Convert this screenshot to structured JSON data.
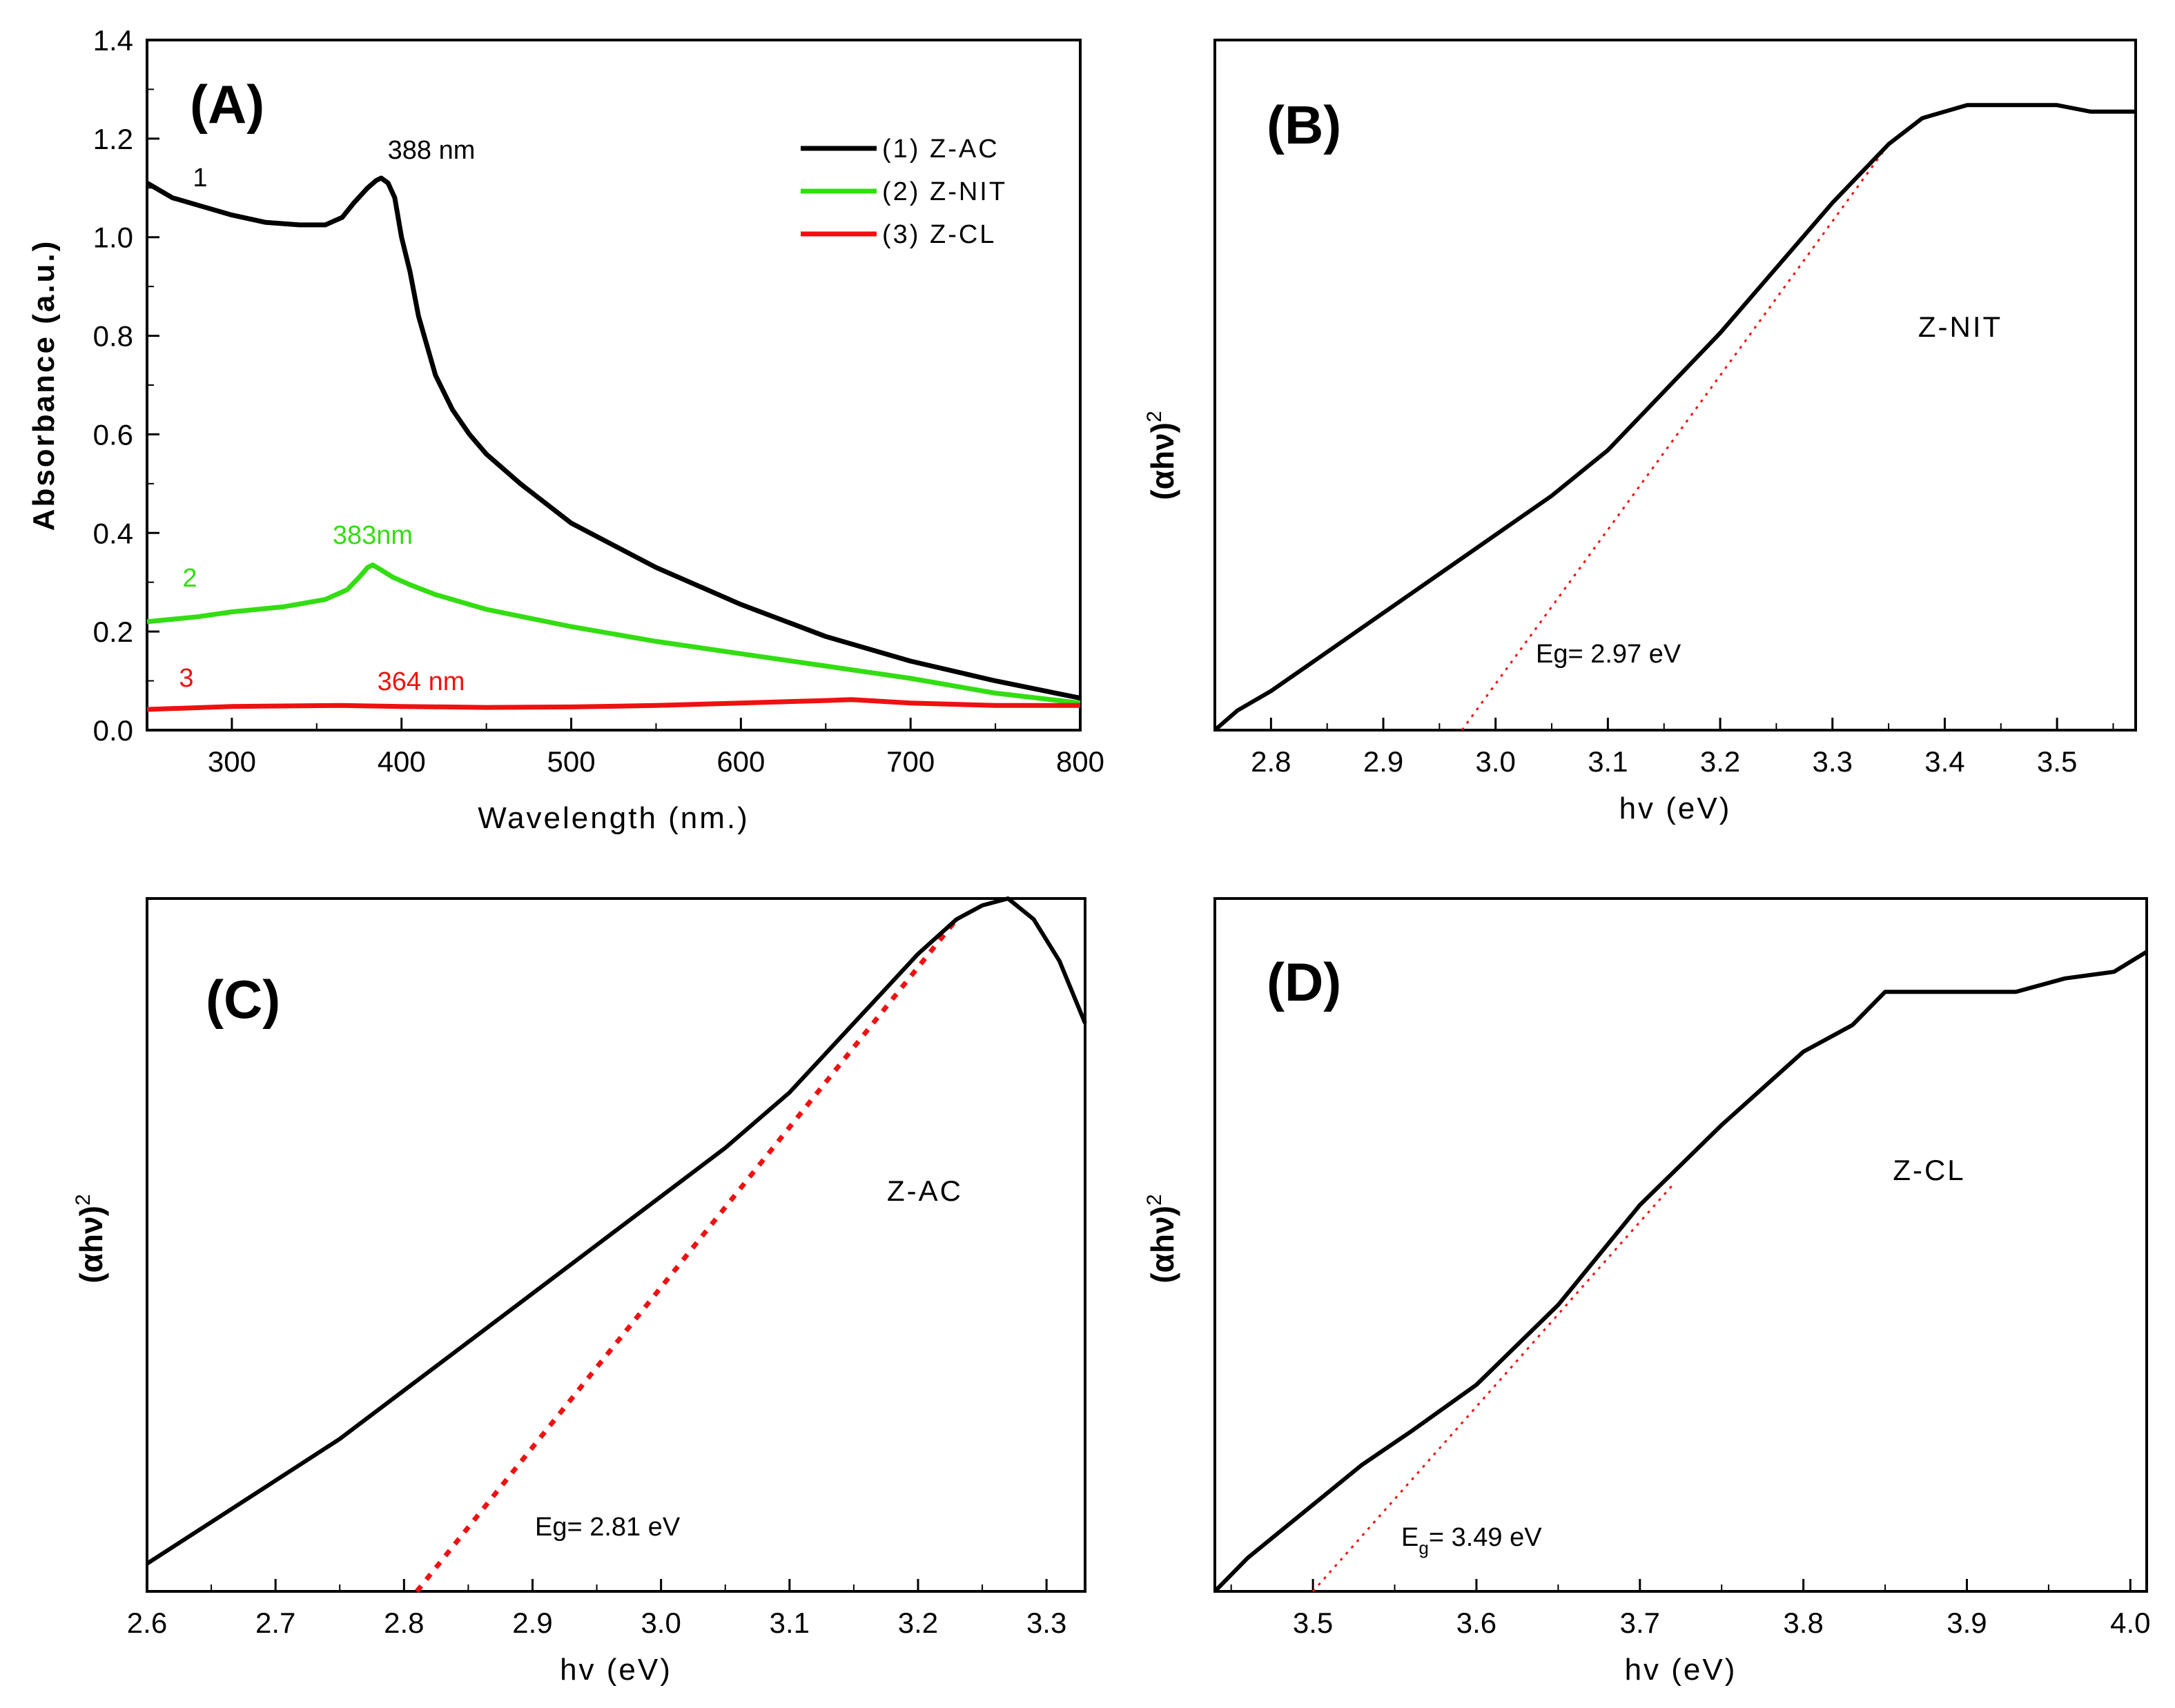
{
  "chart_data": [
    {
      "panel": "A",
      "type": "line",
      "label": "(A)",
      "xlabel": "Wavelength (nm.)",
      "ylabel": "Absorbance (a.u.)",
      "xlim": [
        250,
        800
      ],
      "ylim": [
        0.0,
        1.4
      ],
      "xticks": [
        "300",
        "400",
        "500",
        "600",
        "700",
        "800"
      ],
      "yticks": [
        "0.0",
        "0.2",
        "0.4",
        "0.6",
        "0.8",
        "1.0",
        "1.2",
        "1.4"
      ],
      "legend_position": "top-right",
      "series": [
        {
          "name": "(1) Z-AC",
          "number": "1",
          "color": "#000000",
          "x": [
            250,
            255,
            265,
            280,
            300,
            320,
            340,
            355,
            365,
            372,
            380,
            385,
            388,
            392,
            396,
            400,
            405,
            410,
            420,
            430,
            440,
            450,
            470,
            500,
            550,
            600,
            650,
            700,
            750,
            800
          ],
          "y": [
            1.11,
            1.1,
            1.08,
            1.065,
            1.045,
            1.03,
            1.025,
            1.025,
            1.04,
            1.07,
            1.1,
            1.115,
            1.12,
            1.11,
            1.08,
            1.0,
            0.93,
            0.84,
            0.72,
            0.65,
            0.6,
            0.56,
            0.5,
            0.42,
            0.33,
            0.255,
            0.19,
            0.14,
            0.1,
            0.065
          ]
        },
        {
          "name": "(2) Z-NIT",
          "number": "2",
          "color": "#33dd11",
          "x": [
            250,
            280,
            300,
            330,
            355,
            368,
            375,
            380,
            383,
            388,
            395,
            405,
            420,
            450,
            500,
            550,
            600,
            650,
            700,
            750,
            800
          ],
          "y": [
            0.22,
            0.23,
            0.24,
            0.25,
            0.265,
            0.285,
            0.31,
            0.33,
            0.335,
            0.325,
            0.31,
            0.295,
            0.275,
            0.245,
            0.21,
            0.18,
            0.155,
            0.13,
            0.105,
            0.075,
            0.055
          ]
        },
        {
          "name": "(3) Z-CL",
          "number": "3",
          "color": "#ee1111",
          "x": [
            250,
            300,
            364,
            400,
            450,
            500,
            550,
            600,
            650,
            665,
            700,
            750,
            800
          ],
          "y": [
            0.042,
            0.048,
            0.05,
            0.048,
            0.046,
            0.047,
            0.05,
            0.055,
            0.06,
            0.062,
            0.055,
            0.05,
            0.05
          ]
        }
      ],
      "annotations": [
        {
          "text": "388 nm",
          "x": 388,
          "y": 1.12,
          "color": "#000000"
        },
        {
          "text": "383nm",
          "x": 383,
          "y": 0.335,
          "color": "#33dd11"
        },
        {
          "text": "364 nm",
          "x": 364,
          "y": 0.05,
          "color": "#ee1111"
        }
      ]
    },
    {
      "panel": "B",
      "type": "line",
      "label": "(B)",
      "sample": "Z-NIT",
      "xlabel": "hv (eV)",
      "ylabel": "(αhν)²",
      "xlim": [
        2.75,
        3.57
      ],
      "ylim": [
        0,
        1
      ],
      "xticks": [
        "2.8",
        "2.9",
        "3.0",
        "3.1",
        "3.2",
        "3.3",
        "3.4",
        "3.5"
      ],
      "series": [
        {
          "name": "(αhν)²",
          "x": [
            2.75,
            2.77,
            2.8,
            2.85,
            2.9,
            2.95,
            3.0,
            3.05,
            3.1,
            3.15,
            3.2,
            3.25,
            3.3,
            3.35,
            3.38,
            3.42,
            3.46,
            3.5,
            3.53,
            3.57
          ],
          "y": [
            0.0,
            0.03,
            0.06,
            0.12,
            0.18,
            0.24,
            0.3,
            0.36,
            0.43,
            0.52,
            0.61,
            0.71,
            0.81,
            0.9,
            0.94,
            0.96,
            0.96,
            0.96,
            0.95,
            0.95
          ]
        }
      ],
      "fit_line": {
        "x": [
          2.97,
          3.35
        ],
        "y": [
          0.0,
          0.9
        ]
      },
      "annotation": "Eg= 2.97 eV"
    },
    {
      "panel": "C",
      "type": "line",
      "label": "(C)",
      "sample": "Z-AC",
      "xlabel": "hv (eV)",
      "ylabel": "(αhν)²",
      "xlim": [
        2.6,
        3.33
      ],
      "ylim": [
        0,
        1
      ],
      "xticks": [
        "2.6",
        "2.7",
        "2.8",
        "2.9",
        "3.0",
        "3.1",
        "3.2",
        "3.3"
      ],
      "series": [
        {
          "name": "(αhν)²",
          "x": [
            2.6,
            2.65,
            2.7,
            2.75,
            2.8,
            2.85,
            2.9,
            2.95,
            3.0,
            3.05,
            3.1,
            3.15,
            3.2,
            3.23,
            3.25,
            3.27,
            3.29,
            3.31,
            3.33
          ],
          "y": [
            0.04,
            0.1,
            0.16,
            0.22,
            0.29,
            0.36,
            0.43,
            0.5,
            0.57,
            0.64,
            0.72,
            0.82,
            0.92,
            0.97,
            0.99,
            1.0,
            0.97,
            0.91,
            0.82
          ]
        }
      ],
      "fit_line": {
        "x": [
          2.81,
          3.23
        ],
        "y": [
          0.0,
          0.97
        ]
      },
      "annotation": "Eg= 2.81 eV"
    },
    {
      "panel": "D",
      "type": "line",
      "label": "(D)",
      "sample": "Z-CL",
      "xlabel": "hv (eV)",
      "ylabel": "(αhν)²",
      "xlim": [
        3.44,
        4.01
      ],
      "ylim": [
        0,
        1
      ],
      "xticks": [
        "3.5",
        "3.6",
        "3.7",
        "3.8",
        "3.9",
        "4.0"
      ],
      "series": [
        {
          "name": "(αhν)²",
          "x": [
            3.44,
            3.46,
            3.48,
            3.5,
            3.53,
            3.56,
            3.6,
            3.65,
            3.7,
            3.75,
            3.8,
            3.83,
            3.85,
            3.88,
            3.9,
            3.93,
            3.96,
            3.99,
            4.01
          ],
          "y": [
            0.0,
            0.05,
            0.09,
            0.13,
            0.19,
            0.24,
            0.31,
            0.43,
            0.58,
            0.7,
            0.81,
            0.85,
            0.9,
            0.9,
            0.9,
            0.9,
            0.92,
            0.93,
            0.96
          ]
        }
      ],
      "fit_line": {
        "x": [
          3.5,
          3.72
        ],
        "y": [
          0.0,
          0.61
        ]
      },
      "annotation_main": "E",
      "annotation_sub": "g",
      "annotation_value": "= 3.49 eV"
    }
  ]
}
